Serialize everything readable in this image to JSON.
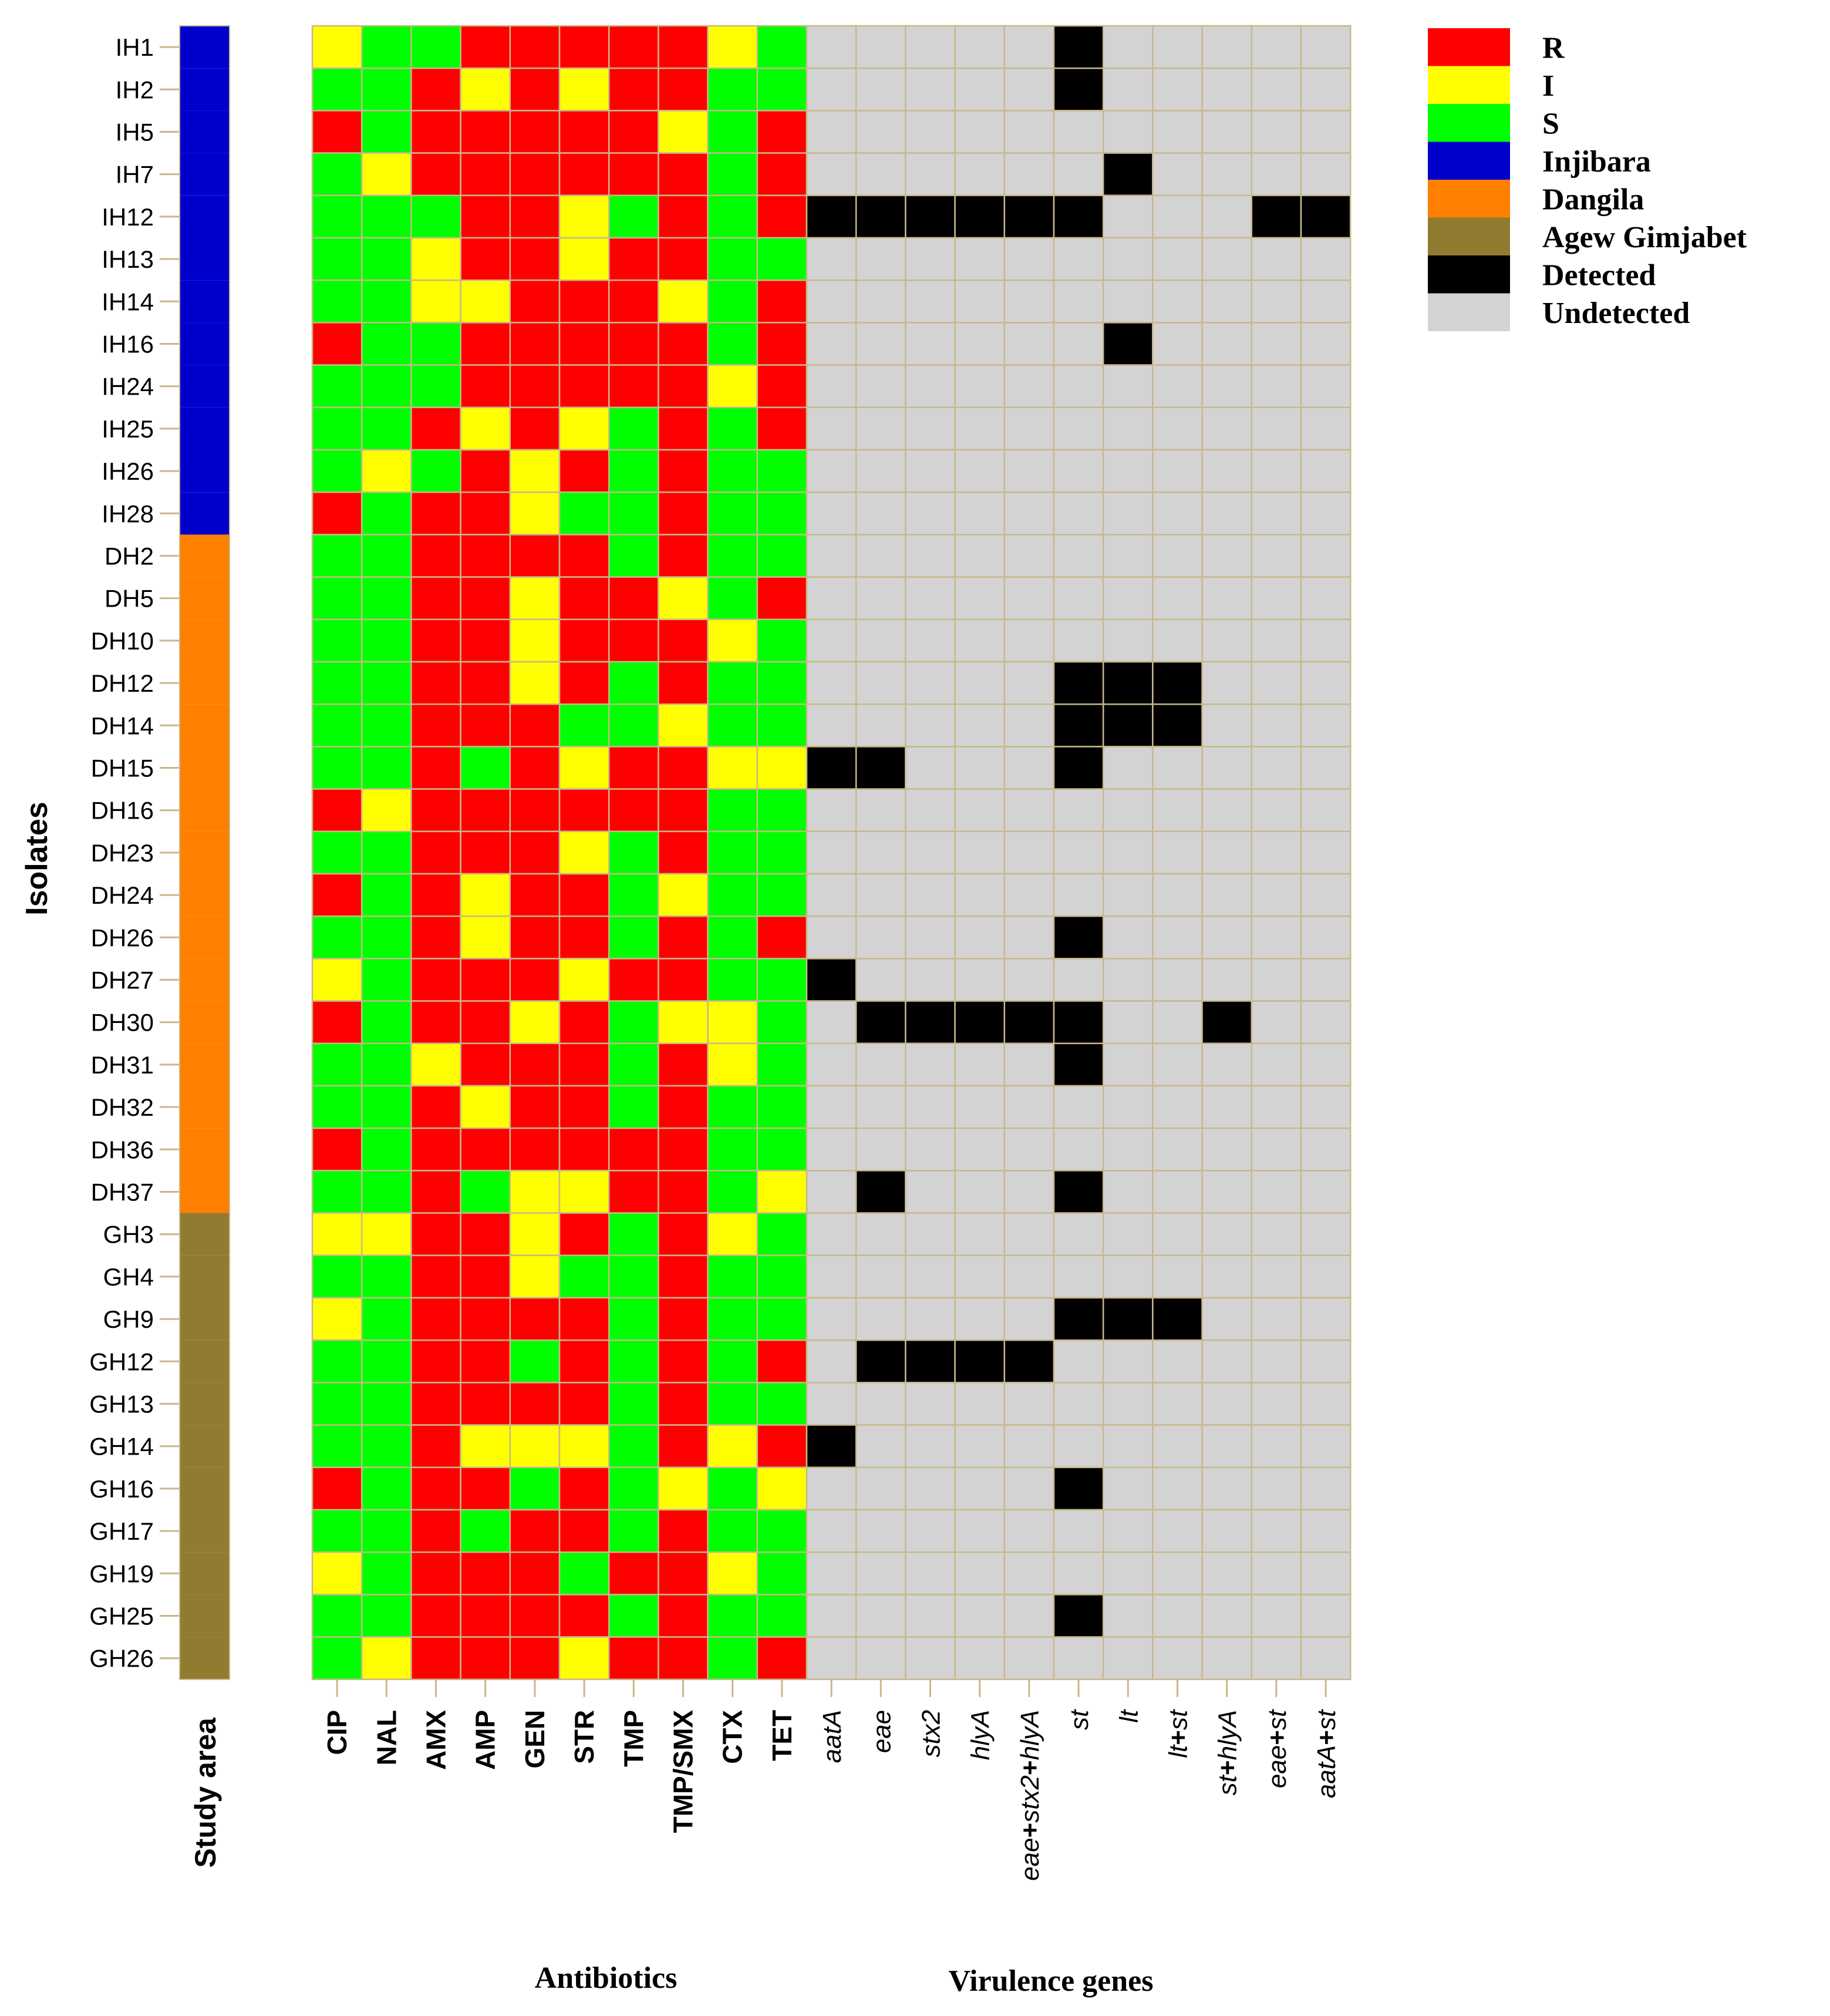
{
  "colors": {
    "R": "#ff0000",
    "I": "#ffff00",
    "S": "#00ff00",
    "Injibara": "#0000cc",
    "Dangila": "#ff7f00",
    "Agew Gimjabet": "#917b30",
    "Detected": "#000000",
    "Undetected": "#d3d3d3",
    "grid": "#c8b88a"
  },
  "chart_data": {
    "type": "heatmap",
    "ylabel": "Isolates",
    "rows": [
      "IH1",
      "IH2",
      "IH5",
      "IH7",
      "IH12",
      "IH13",
      "IH14",
      "IH16",
      "IH24",
      "IH25",
      "IH26",
      "IH28",
      "DH2",
      "DH5",
      "DH10",
      "DH12",
      "DH14",
      "DH15",
      "DH16",
      "DH23",
      "DH24",
      "DH26",
      "DH27",
      "DH30",
      "DH31",
      "DH32",
      "DH36",
      "DH37",
      "GH3",
      "GH4",
      "GH9",
      "GH12",
      "GH13",
      "GH14",
      "GH16",
      "GH17",
      "GH19",
      "GH25",
      "GH26"
    ],
    "study_area": {
      "label": "Study area",
      "values": [
        "Injibara",
        "Injibara",
        "Injibara",
        "Injibara",
        "Injibara",
        "Injibara",
        "Injibara",
        "Injibara",
        "Injibara",
        "Injibara",
        "Injibara",
        "Injibara",
        "Dangila",
        "Dangila",
        "Dangila",
        "Dangila",
        "Dangila",
        "Dangila",
        "Dangila",
        "Dangila",
        "Dangila",
        "Dangila",
        "Dangila",
        "Dangila",
        "Dangila",
        "Dangila",
        "Dangila",
        "Dangila",
        "Agew Gimjabet",
        "Agew Gimjabet",
        "Agew Gimjabet",
        "Agew Gimjabet",
        "Agew Gimjabet",
        "Agew Gimjabet",
        "Agew Gimjabet",
        "Agew Gimjabet",
        "Agew Gimjabet",
        "Agew Gimjabet",
        "Agew Gimjabet"
      ]
    },
    "antibiotics": {
      "label": "Antibiotics",
      "columns": [
        "CIP",
        "NAL",
        "AMX",
        "AMP",
        "GEN",
        "STR",
        "TMP",
        "TMP/SMX",
        "CTX",
        "TET"
      ],
      "values": [
        [
          "I",
          "S",
          "S",
          "R",
          "R",
          "R",
          "R",
          "R",
          "I",
          "S"
        ],
        [
          "S",
          "S",
          "R",
          "I",
          "R",
          "I",
          "R",
          "R",
          "S",
          "S"
        ],
        [
          "R",
          "S",
          "R",
          "R",
          "R",
          "R",
          "R",
          "I",
          "S",
          "R"
        ],
        [
          "S",
          "I",
          "R",
          "R",
          "R",
          "R",
          "R",
          "R",
          "S",
          "R"
        ],
        [
          "S",
          "S",
          "S",
          "R",
          "R",
          "I",
          "S",
          "R",
          "S",
          "R"
        ],
        [
          "S",
          "S",
          "I",
          "R",
          "R",
          "I",
          "R",
          "R",
          "S",
          "S"
        ],
        [
          "S",
          "S",
          "I",
          "I",
          "R",
          "R",
          "R",
          "I",
          "S",
          "R"
        ],
        [
          "R",
          "S",
          "S",
          "R",
          "R",
          "R",
          "R",
          "R",
          "S",
          "R"
        ],
        [
          "S",
          "S",
          "S",
          "R",
          "R",
          "R",
          "R",
          "R",
          "I",
          "R"
        ],
        [
          "S",
          "S",
          "R",
          "I",
          "R",
          "I",
          "S",
          "R",
          "S",
          "R"
        ],
        [
          "S",
          "I",
          "S",
          "R",
          "I",
          "R",
          "S",
          "R",
          "S",
          "S"
        ],
        [
          "R",
          "S",
          "R",
          "R",
          "I",
          "S",
          "S",
          "R",
          "S",
          "S"
        ],
        [
          "S",
          "S",
          "R",
          "R",
          "R",
          "R",
          "S",
          "R",
          "S",
          "S"
        ],
        [
          "S",
          "S",
          "R",
          "R",
          "I",
          "R",
          "R",
          "I",
          "S",
          "R"
        ],
        [
          "S",
          "S",
          "R",
          "R",
          "I",
          "R",
          "R",
          "R",
          "I",
          "S"
        ],
        [
          "S",
          "S",
          "R",
          "R",
          "I",
          "R",
          "S",
          "R",
          "S",
          "S"
        ],
        [
          "S",
          "S",
          "R",
          "R",
          "R",
          "S",
          "S",
          "I",
          "S",
          "S"
        ],
        [
          "S",
          "S",
          "R",
          "S",
          "R",
          "I",
          "R",
          "R",
          "I",
          "I"
        ],
        [
          "R",
          "I",
          "R",
          "R",
          "R",
          "R",
          "R",
          "R",
          "S",
          "S"
        ],
        [
          "S",
          "S",
          "R",
          "R",
          "R",
          "I",
          "S",
          "R",
          "S",
          "S"
        ],
        [
          "R",
          "S",
          "R",
          "I",
          "R",
          "R",
          "S",
          "I",
          "S",
          "S"
        ],
        [
          "S",
          "S",
          "R",
          "I",
          "R",
          "R",
          "S",
          "R",
          "S",
          "R"
        ],
        [
          "I",
          "S",
          "R",
          "R",
          "R",
          "I",
          "R",
          "R",
          "S",
          "S"
        ],
        [
          "R",
          "S",
          "R",
          "R",
          "I",
          "R",
          "S",
          "I",
          "I",
          "S"
        ],
        [
          "S",
          "S",
          "I",
          "R",
          "R",
          "R",
          "S",
          "R",
          "I",
          "S"
        ],
        [
          "S",
          "S",
          "R",
          "I",
          "R",
          "R",
          "S",
          "R",
          "S",
          "S"
        ],
        [
          "R",
          "S",
          "R",
          "R",
          "R",
          "R",
          "R",
          "R",
          "S",
          "S"
        ],
        [
          "S",
          "S",
          "R",
          "S",
          "I",
          "I",
          "R",
          "R",
          "S",
          "I"
        ],
        [
          "I",
          "I",
          "R",
          "R",
          "I",
          "R",
          "S",
          "R",
          "I",
          "S"
        ],
        [
          "S",
          "S",
          "R",
          "R",
          "I",
          "S",
          "S",
          "R",
          "S",
          "S"
        ],
        [
          "I",
          "S",
          "R",
          "R",
          "R",
          "R",
          "S",
          "R",
          "S",
          "S"
        ],
        [
          "S",
          "S",
          "R",
          "R",
          "S",
          "R",
          "S",
          "R",
          "S",
          "R"
        ],
        [
          "S",
          "S",
          "R",
          "R",
          "R",
          "R",
          "S",
          "R",
          "S",
          "S"
        ],
        [
          "S",
          "S",
          "R",
          "I",
          "I",
          "I",
          "S",
          "R",
          "I",
          "R"
        ],
        [
          "R",
          "S",
          "R",
          "R",
          "S",
          "R",
          "S",
          "I",
          "S",
          "I"
        ],
        [
          "S",
          "S",
          "R",
          "S",
          "R",
          "R",
          "S",
          "R",
          "S",
          "S"
        ],
        [
          "I",
          "S",
          "R",
          "R",
          "R",
          "S",
          "R",
          "R",
          "I",
          "S"
        ],
        [
          "S",
          "S",
          "R",
          "R",
          "R",
          "R",
          "S",
          "R",
          "S",
          "S"
        ],
        [
          "S",
          "I",
          "R",
          "R",
          "R",
          "I",
          "R",
          "R",
          "S",
          "R"
        ]
      ]
    },
    "virulence_genes": {
      "label": "Virulence genes",
      "columns": [
        "aatA",
        "eae",
        "stx2",
        "hlyA",
        "eae+stx2+hlyA",
        "st",
        "lt",
        "lt+st",
        "st+hlyA",
        "eae+st",
        "aatA+st"
      ],
      "values": [
        [
          0,
          0,
          0,
          0,
          0,
          1,
          0,
          0,
          0,
          0,
          0
        ],
        [
          0,
          0,
          0,
          0,
          0,
          1,
          0,
          0,
          0,
          0,
          0
        ],
        [
          0,
          0,
          0,
          0,
          0,
          0,
          0,
          0,
          0,
          0,
          0
        ],
        [
          0,
          0,
          0,
          0,
          0,
          0,
          1,
          0,
          0,
          0,
          0
        ],
        [
          1,
          1,
          1,
          1,
          1,
          1,
          0,
          0,
          0,
          1,
          1
        ],
        [
          0,
          0,
          0,
          0,
          0,
          0,
          0,
          0,
          0,
          0,
          0
        ],
        [
          0,
          0,
          0,
          0,
          0,
          0,
          0,
          0,
          0,
          0,
          0
        ],
        [
          0,
          0,
          0,
          0,
          0,
          0,
          1,
          0,
          0,
          0,
          0
        ],
        [
          0,
          0,
          0,
          0,
          0,
          0,
          0,
          0,
          0,
          0,
          0
        ],
        [
          0,
          0,
          0,
          0,
          0,
          0,
          0,
          0,
          0,
          0,
          0
        ],
        [
          0,
          0,
          0,
          0,
          0,
          0,
          0,
          0,
          0,
          0,
          0
        ],
        [
          0,
          0,
          0,
          0,
          0,
          0,
          0,
          0,
          0,
          0,
          0
        ],
        [
          0,
          0,
          0,
          0,
          0,
          0,
          0,
          0,
          0,
          0,
          0
        ],
        [
          0,
          0,
          0,
          0,
          0,
          0,
          0,
          0,
          0,
          0,
          0
        ],
        [
          0,
          0,
          0,
          0,
          0,
          0,
          0,
          0,
          0,
          0,
          0
        ],
        [
          0,
          0,
          0,
          0,
          0,
          1,
          1,
          1,
          0,
          0,
          0
        ],
        [
          0,
          0,
          0,
          0,
          0,
          1,
          1,
          1,
          0,
          0,
          0
        ],
        [
          1,
          1,
          0,
          0,
          0,
          1,
          0,
          0,
          0,
          0,
          0
        ],
        [
          0,
          0,
          0,
          0,
          0,
          0,
          0,
          0,
          0,
          0,
          0
        ],
        [
          0,
          0,
          0,
          0,
          0,
          0,
          0,
          0,
          0,
          0,
          0
        ],
        [
          0,
          0,
          0,
          0,
          0,
          0,
          0,
          0,
          0,
          0,
          0
        ],
        [
          0,
          0,
          0,
          0,
          0,
          1,
          0,
          0,
          0,
          0,
          0
        ],
        [
          1,
          0,
          0,
          0,
          0,
          0,
          0,
          0,
          0,
          0,
          0
        ],
        [
          0,
          1,
          1,
          1,
          1,
          1,
          0,
          0,
          1,
          0,
          0
        ],
        [
          0,
          0,
          0,
          0,
          0,
          1,
          0,
          0,
          0,
          0,
          0
        ],
        [
          0,
          0,
          0,
          0,
          0,
          0,
          0,
          0,
          0,
          0,
          0
        ],
        [
          0,
          0,
          0,
          0,
          0,
          0,
          0,
          0,
          0,
          0,
          0
        ],
        [
          0,
          1,
          0,
          0,
          0,
          1,
          0,
          0,
          0,
          0,
          0
        ],
        [
          0,
          0,
          0,
          0,
          0,
          0,
          0,
          0,
          0,
          0,
          0
        ],
        [
          0,
          0,
          0,
          0,
          0,
          0,
          0,
          0,
          0,
          0,
          0
        ],
        [
          0,
          0,
          0,
          0,
          0,
          1,
          1,
          1,
          0,
          0,
          0
        ],
        [
          0,
          1,
          1,
          1,
          1,
          0,
          0,
          0,
          0,
          0,
          0
        ],
        [
          0,
          0,
          0,
          0,
          0,
          0,
          0,
          0,
          0,
          0,
          0
        ],
        [
          1,
          0,
          0,
          0,
          0,
          0,
          0,
          0,
          0,
          0,
          0
        ],
        [
          0,
          0,
          0,
          0,
          0,
          1,
          0,
          0,
          0,
          0,
          0
        ],
        [
          0,
          0,
          0,
          0,
          0,
          0,
          0,
          0,
          0,
          0,
          0
        ],
        [
          0,
          0,
          0,
          0,
          0,
          0,
          0,
          0,
          0,
          0,
          0
        ],
        [
          0,
          0,
          0,
          0,
          0,
          1,
          0,
          0,
          0,
          0,
          0
        ],
        [
          0,
          0,
          0,
          0,
          0,
          0,
          0,
          0,
          0,
          0,
          0
        ]
      ]
    },
    "legend": {
      "placement": "top-right",
      "items": [
        {
          "key": "R",
          "label": "R"
        },
        {
          "key": "I",
          "label": "I"
        },
        {
          "key": "S",
          "label": "S"
        },
        {
          "key": "Injibara",
          "label": "Injibara"
        },
        {
          "key": "Dangila",
          "label": "Dangila"
        },
        {
          "key": "Agew Gimjabet",
          "label": "Agew Gimjabet"
        },
        {
          "key": "Detected",
          "label": "Detected"
        },
        {
          "key": "Undetected",
          "label": "Undetected"
        }
      ]
    }
  }
}
